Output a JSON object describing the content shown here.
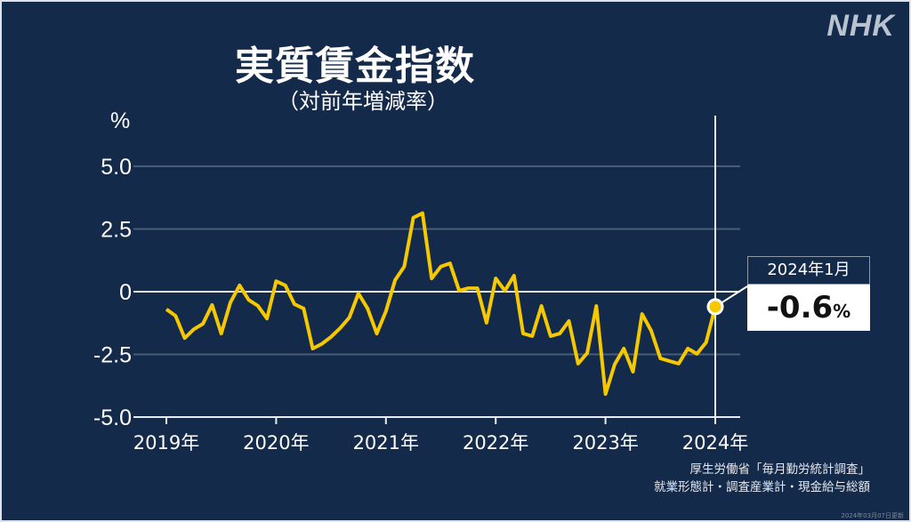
{
  "logo": "NHK",
  "colors": {
    "background": "#142a4a",
    "line": "#f5c800",
    "grid": "#4a5d78"
  },
  "chart_data": {
    "type": "line",
    "title": "実質賃金指数",
    "subtitle": "（対前年増減率）",
    "ylabel": "%",
    "ylim": [
      -5.0,
      6.5
    ],
    "yticks": [
      5.0,
      2.5,
      0,
      -2.5,
      -5.0
    ],
    "ytick_labels": [
      "5.0",
      "2.5",
      "0",
      "-2.5",
      "-5.0"
    ],
    "xtick_labels": [
      "2019年",
      "2020年",
      "2021年",
      "2022年",
      "2023年",
      "2024年"
    ],
    "x_start": "2019-01",
    "x_end": "2024-01",
    "grid": true,
    "series": [
      {
        "name": "実質賃金指数 対前年増減率",
        "values": [
          -0.7,
          -0.96,
          -1.85,
          -1.5,
          -1.28,
          -0.53,
          -1.67,
          -0.43,
          0.25,
          -0.33,
          -0.56,
          -1.07,
          0.42,
          0.25,
          -0.5,
          -0.67,
          -2.27,
          -2.08,
          -1.8,
          -1.45,
          -1.03,
          -0.07,
          -0.67,
          -1.67,
          -0.78,
          0.46,
          1.0,
          2.95,
          3.13,
          0.53,
          1.0,
          1.13,
          0.04,
          0.14,
          0.14,
          -1.24,
          0.53,
          0.04,
          0.64,
          -1.67,
          -1.77,
          -0.57,
          -1.77,
          -1.67,
          -1.17,
          -2.87,
          -2.45,
          -0.57,
          -4.08,
          -2.9,
          -2.27,
          -3.19,
          -0.89,
          -1.56,
          -2.66,
          -2.77,
          -2.87,
          -2.27,
          -2.48,
          -2.02,
          -0.6
        ]
      }
    ],
    "annotation": {
      "date": "2024年1月",
      "value": "-0.6",
      "unit": "%"
    }
  },
  "source": {
    "line1": "厚生労働省「毎月勤労統計調査」",
    "line2": "就業形態計・調査産業計・現金給与総額"
  },
  "updated": "2024年03月07日更新"
}
